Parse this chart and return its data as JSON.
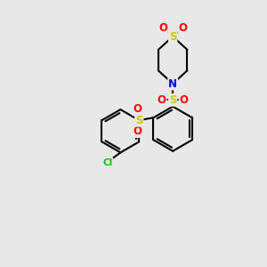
{
  "bg_color": "#e8e8e8",
  "atom_colors": {
    "C": "#000000",
    "N": "#0000ff",
    "S": "#cccc00",
    "O": "#ff0000",
    "Cl": "#00cc00"
  },
  "bond_color": "#000000",
  "bond_width": 1.5,
  "dbo": 0.055,
  "font_size_atom": 8.5,
  "font_size_cl": 7.5
}
